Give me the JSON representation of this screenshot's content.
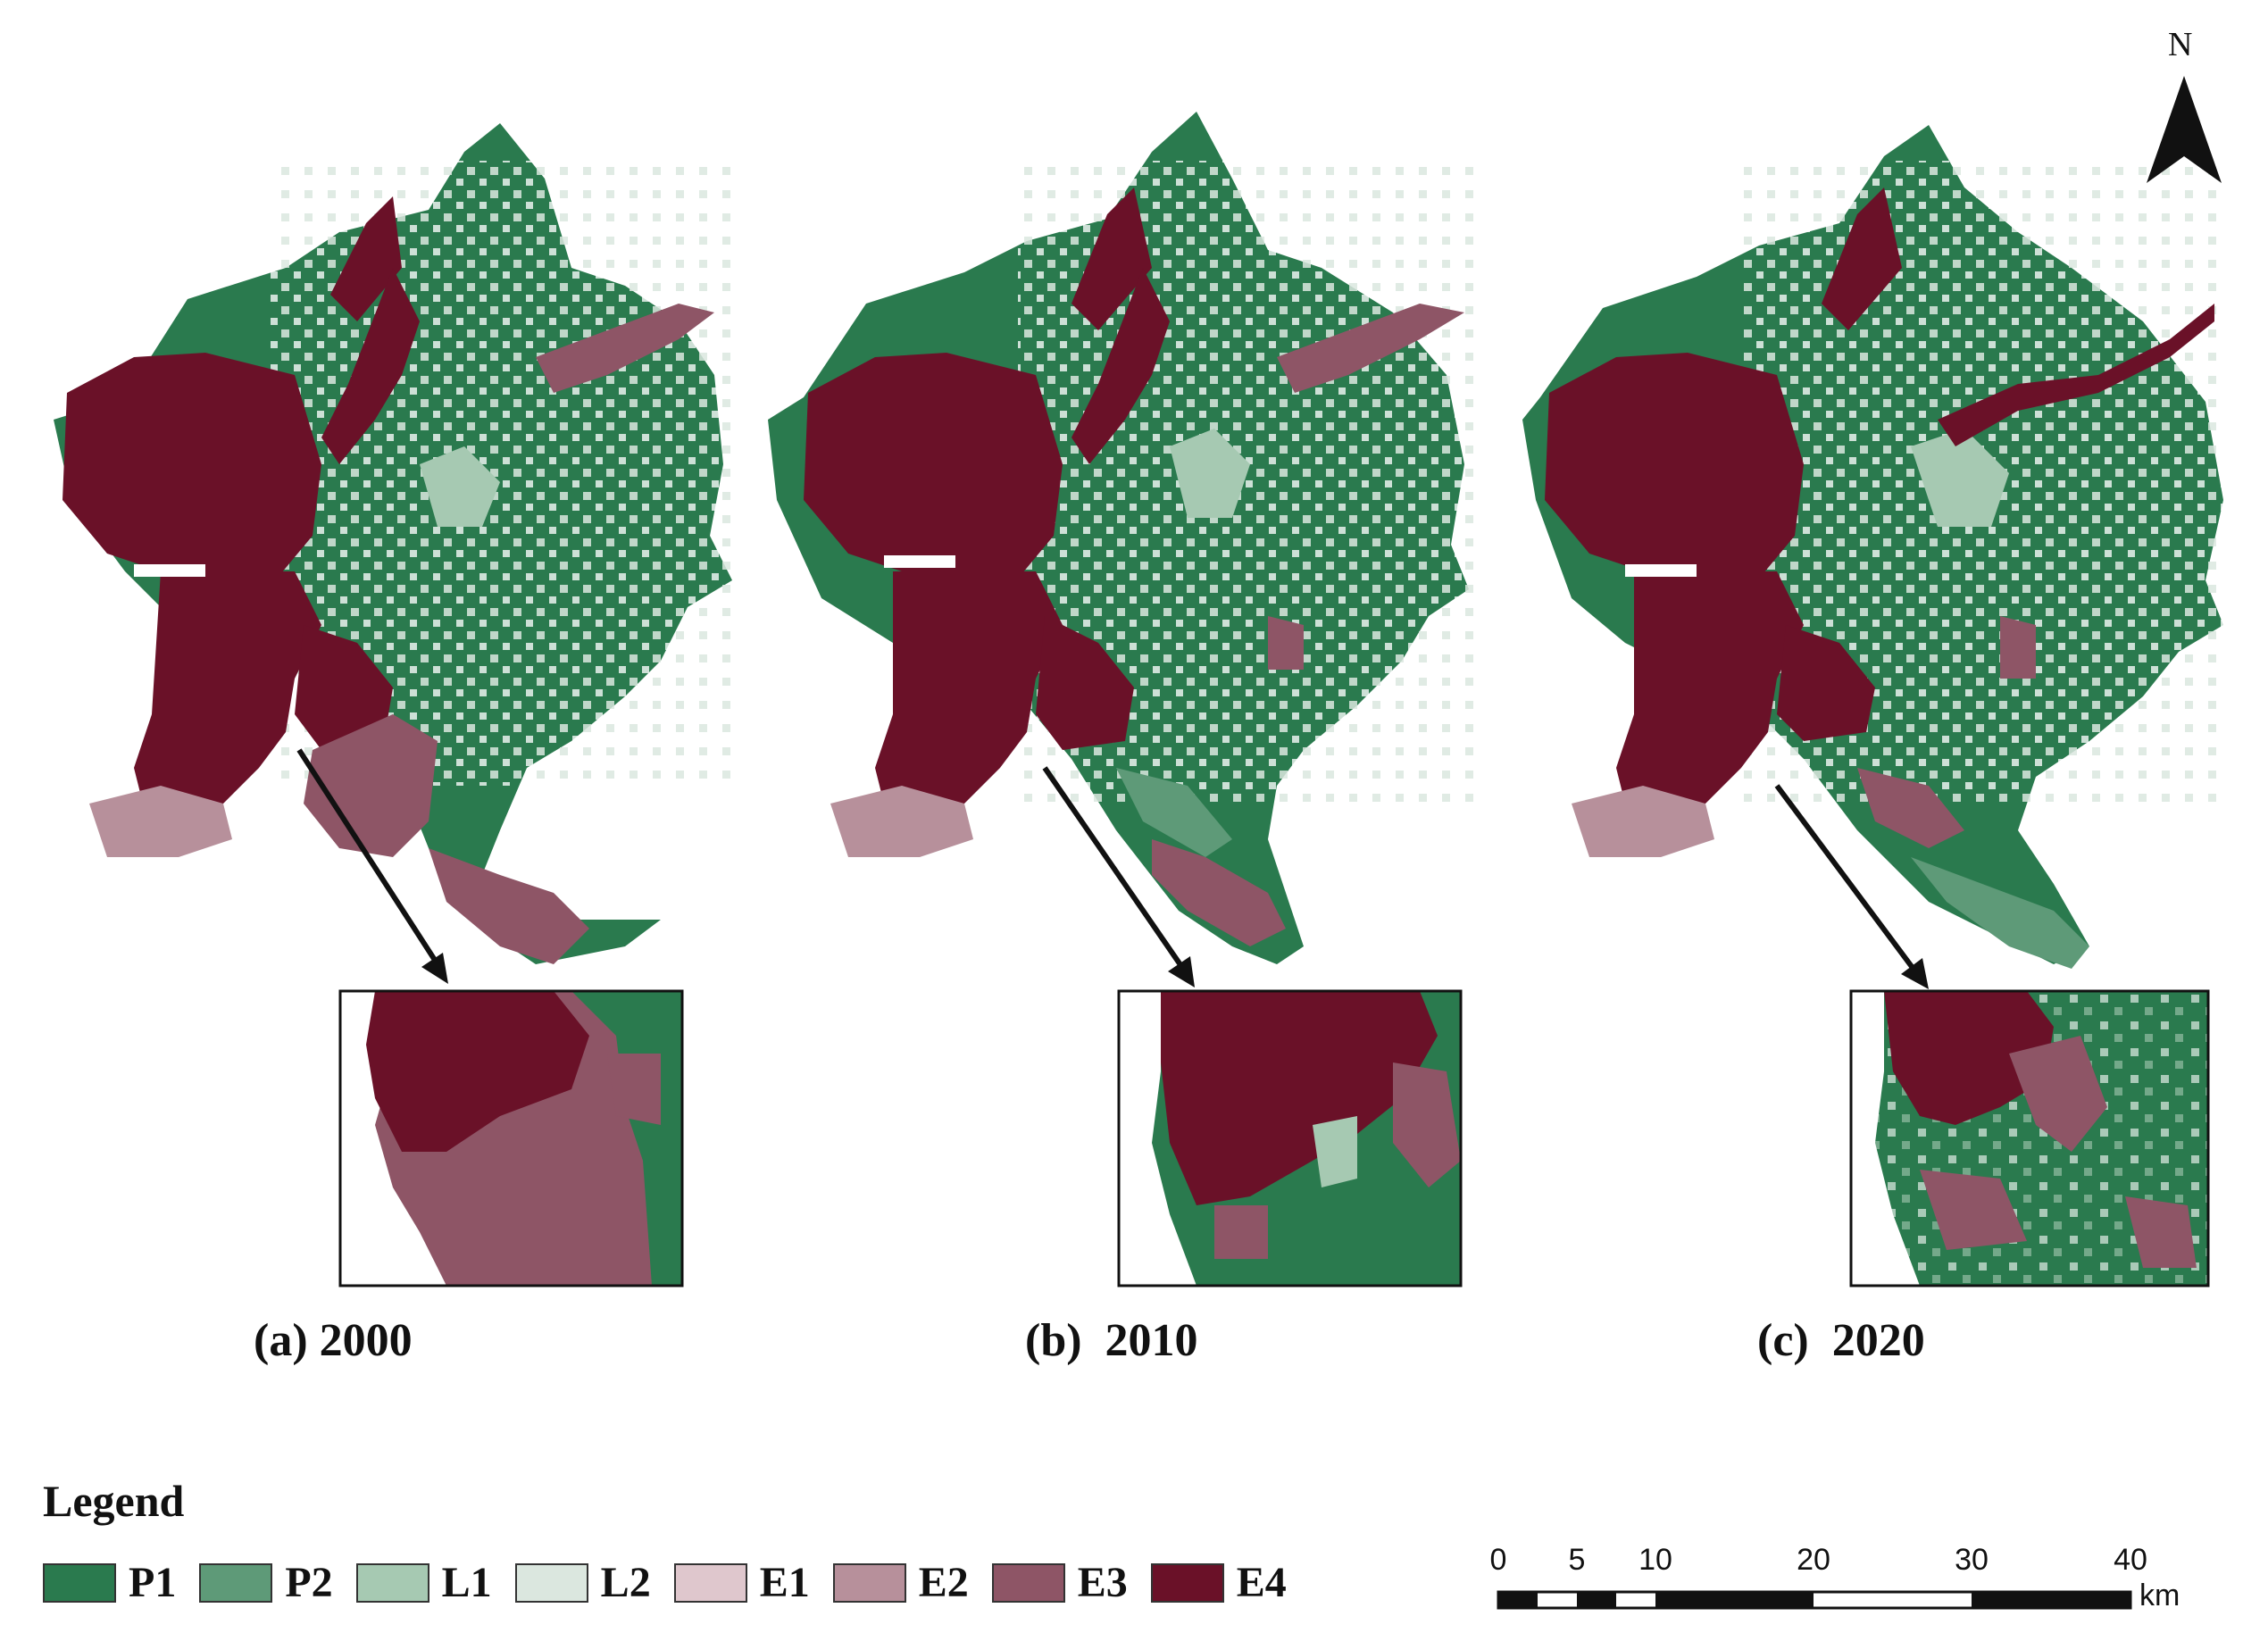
{
  "panels": [
    {
      "label": "(a) 2000",
      "year": "2000"
    },
    {
      "label": "(b)  2010",
      "year": "2010"
    },
    {
      "label": "(c)  2020",
      "year": "2020"
    }
  ],
  "legend": {
    "title": "Legend",
    "items": [
      {
        "label": "P1",
        "color": "#2a7a4e"
      },
      {
        "label": "P2",
        "color": "#5e9a78"
      },
      {
        "label": "L1",
        "color": "#a6c9b2"
      },
      {
        "label": "L2",
        "color": "#dbe7df"
      },
      {
        "label": "E1",
        "color": "#dfc7cd"
      },
      {
        "label": "E2",
        "color": "#b7909b"
      },
      {
        "label": "E3",
        "color": "#8e5566"
      },
      {
        "label": "E4",
        "color": "#6a1128"
      }
    ]
  },
  "scale_bar": {
    "ticks": [
      "0",
      "5",
      "10",
      "20",
      "30",
      "40"
    ],
    "unit": "km"
  },
  "north_arrow": {
    "label": "N",
    "icon": "north-arrow-icon"
  }
}
